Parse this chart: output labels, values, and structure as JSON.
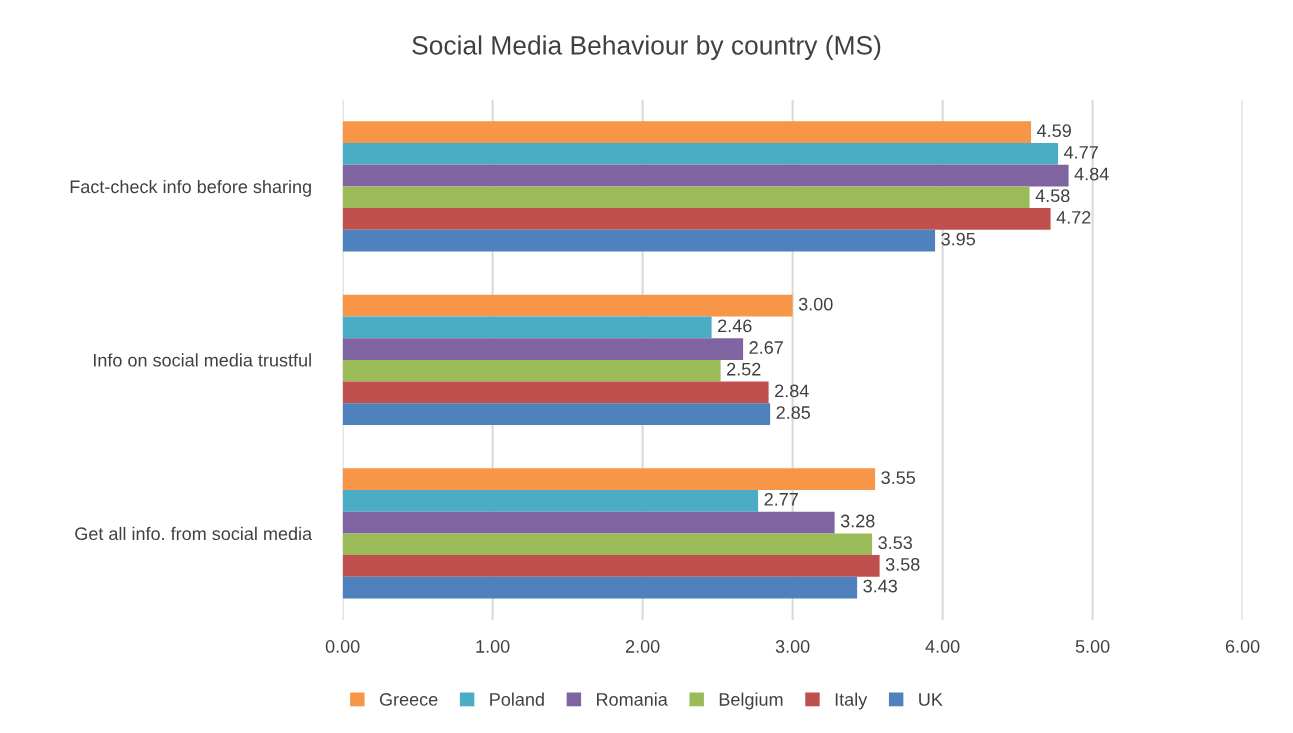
{
  "chart_data": {
    "type": "bar",
    "orientation": "horizontal",
    "title": "Social Media Behaviour by country (MS)",
    "categories": [
      "Fact-check info before sharing",
      "Info on social media trustful",
      "Get all info. from social media"
    ],
    "series": [
      {
        "name": "Greece",
        "color": "#f79646",
        "values": [
          4.59,
          3.0,
          3.55
        ],
        "value_labels": [
          "4.59",
          "3.00",
          "3.55"
        ]
      },
      {
        "name": "Poland",
        "color": "#4bacc6",
        "values": [
          4.77,
          2.46,
          2.77
        ],
        "value_labels": [
          "4.77",
          "2.46",
          "2.77"
        ]
      },
      {
        "name": "Romania",
        "color": "#8064a2",
        "values": [
          4.84,
          2.67,
          3.28
        ],
        "value_labels": [
          "4.84",
          "2.67",
          "3.28"
        ]
      },
      {
        "name": "Belgium",
        "color": "#9bbb59",
        "values": [
          4.58,
          2.52,
          3.53
        ],
        "value_labels": [
          "4.58",
          "2.52",
          "3.53"
        ]
      },
      {
        "name": "Italy",
        "color": "#c0504d",
        "values": [
          4.72,
          2.84,
          3.58
        ],
        "value_labels": [
          "4.72",
          "2.84",
          "3.58"
        ]
      },
      {
        "name": "UK",
        "color": "#4f81bd",
        "values": [
          3.95,
          2.85,
          3.43
        ],
        "value_labels": [
          "3.95",
          "2.85",
          "3.43"
        ]
      }
    ],
    "xlim": [
      0,
      6
    ],
    "xticks": [
      {
        "value": 0,
        "label": "0.00"
      },
      {
        "value": 1,
        "label": "1.00"
      },
      {
        "value": 2,
        "label": "2.00"
      },
      {
        "value": 3,
        "label": "3.00"
      },
      {
        "value": 4,
        "label": "4.00"
      },
      {
        "value": 5,
        "label": "5.00"
      },
      {
        "value": 6,
        "label": "6.00"
      }
    ],
    "grid": "x",
    "legend": "bottom"
  }
}
